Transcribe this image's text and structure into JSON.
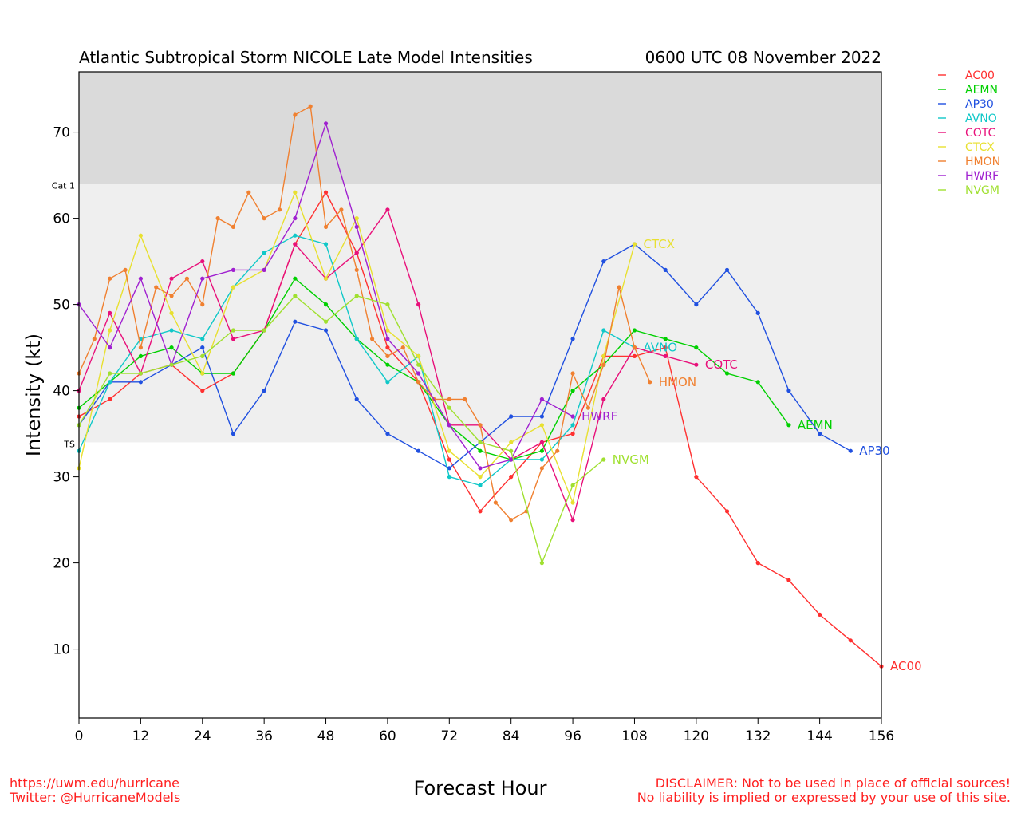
{
  "chart_data": {
    "type": "line",
    "title": "Atlantic Subtropical Storm NICOLE Late Model Intensities",
    "subtitle": "0600 UTC 08 November 2022",
    "xlabel": "Forecast Hour",
    "ylabel": "Intensity (kt)",
    "xlim": [
      0,
      156
    ],
    "ylim": [
      2,
      77
    ],
    "xticks": [
      0,
      12,
      24,
      36,
      48,
      60,
      72,
      84,
      96,
      108,
      120,
      132,
      144,
      156
    ],
    "yticks": [
      10,
      20,
      30,
      40,
      50,
      60,
      70
    ],
    "bands": [
      {
        "label": "TS",
        "from": 34,
        "to": 64,
        "color": "#efefef"
      },
      {
        "label": "Cat 1",
        "from": 64,
        "to": 77,
        "color": "#dadada"
      }
    ],
    "grid": false,
    "legend_position": "right-top",
    "series": [
      {
        "name": "AC00",
        "color": "#ff3030",
        "x": [
          0,
          6,
          12,
          18,
          24,
          30,
          36,
          42,
          48,
          54,
          60,
          66,
          72,
          78,
          84,
          90,
          96,
          102,
          108,
          114,
          120,
          126,
          132,
          138,
          144,
          150,
          156
        ],
        "y": [
          37,
          39,
          42,
          43,
          40,
          42,
          47,
          57,
          63,
          56,
          45,
          41,
          32,
          26,
          30,
          34,
          35,
          44,
          44,
          45,
          30,
          26,
          20,
          18,
          14,
          11,
          8
        ]
      },
      {
        "name": "AEMN",
        "color": "#00d000",
        "x": [
          0,
          12,
          18,
          24,
          30,
          36,
          42,
          48,
          54,
          60,
          66,
          72,
          78,
          84,
          90,
          96,
          102,
          108,
          114,
          120,
          126,
          132,
          138
        ],
        "y": [
          38,
          44,
          45,
          42,
          42,
          47,
          53,
          50,
          46,
          43,
          41,
          36,
          33,
          32,
          33,
          40,
          43,
          47,
          46,
          45,
          42,
          41,
          36
        ]
      },
      {
        "name": "AP30",
        "color": "#2050e0",
        "x": [
          0,
          6,
          12,
          18,
          24,
          30,
          36,
          42,
          48,
          54,
          60,
          66,
          72,
          78,
          84,
          90,
          96,
          102,
          108,
          114,
          120,
          126,
          132,
          138,
          144,
          150
        ],
        "y": [
          36,
          41,
          41,
          43,
          45,
          35,
          40,
          48,
          47,
          39,
          35,
          33,
          31,
          34,
          37,
          37,
          46,
          55,
          57,
          54,
          50,
          54,
          49,
          40,
          35,
          33
        ]
      },
      {
        "name": "AVNO",
        "color": "#10c8c8",
        "x": [
          0,
          6,
          12,
          18,
          24,
          30,
          36,
          42,
          48,
          54,
          60,
          66,
          72,
          78,
          84,
          90,
          96,
          102,
          108
        ],
        "y": [
          33,
          41,
          46,
          47,
          46,
          52,
          56,
          58,
          57,
          46,
          41,
          44,
          30,
          29,
          32,
          32,
          36,
          47,
          45
        ]
      },
      {
        "name": "COTC",
        "color": "#e8107a",
        "x": [
          0,
          6,
          12,
          18,
          24,
          30,
          36,
          42,
          48,
          54,
          60,
          66,
          72,
          78,
          84,
          90,
          96,
          102,
          108,
          114,
          120
        ],
        "y": [
          40,
          49,
          42,
          53,
          55,
          46,
          47,
          57,
          53,
          56,
          61,
          50,
          36,
          36,
          32,
          34,
          25,
          39,
          45,
          44,
          43
        ]
      },
      {
        "name": "CTCX",
        "color": "#e8e030",
        "x": [
          0,
          6,
          12,
          18,
          24,
          30,
          36,
          42,
          48,
          54,
          60,
          66,
          72,
          78,
          84,
          90,
          96,
          102,
          108
        ],
        "y": [
          31,
          47,
          58,
          49,
          42,
          52,
          54,
          63,
          53,
          60,
          47,
          44,
          33,
          30,
          34,
          36,
          27,
          44,
          57
        ]
      },
      {
        "name": "HMON",
        "color": "#f08030",
        "x": [
          0,
          3,
          6,
          9,
          12,
          15,
          18,
          21,
          24,
          27,
          30,
          33,
          36,
          39,
          42,
          45,
          48,
          51,
          54,
          57,
          60,
          63,
          66,
          69,
          72,
          75,
          78,
          81,
          84,
          87,
          90,
          93,
          96,
          99,
          102,
          105,
          108,
          111
        ],
        "y": [
          42,
          46,
          53,
          54,
          45,
          52,
          51,
          53,
          50,
          60,
          59,
          63,
          60,
          61,
          72,
          73,
          59,
          61,
          54,
          46,
          44,
          45,
          41,
          39,
          39,
          39,
          36,
          27,
          25,
          26,
          31,
          33,
          42,
          38,
          43,
          52,
          45,
          41
        ]
      },
      {
        "name": "HWRF",
        "color": "#a020d0",
        "x": [
          0,
          6,
          12,
          18,
          24,
          30,
          36,
          42,
          48,
          54,
          60,
          66,
          72,
          78,
          84,
          90,
          96
        ],
        "y": [
          50,
          45,
          53,
          43,
          53,
          54,
          54,
          60,
          71,
          59,
          46,
          42,
          36,
          31,
          32,
          39,
          37
        ]
      },
      {
        "name": "NVGM",
        "color": "#a0e030",
        "x": [
          0,
          6,
          12,
          18,
          24,
          30,
          36,
          42,
          48,
          54,
          60,
          66,
          72,
          78,
          84,
          90,
          96,
          102
        ],
        "y": [
          36,
          42,
          42,
          43,
          44,
          47,
          47,
          51,
          48,
          51,
          50,
          43,
          38,
          34,
          33,
          20,
          29,
          32
        ]
      }
    ]
  },
  "footer": {
    "url": "https://uwm.edu/hurricane",
    "twitter": "Twitter: @HurricaneModels",
    "disclaimer_line1": "DISCLAIMER: Not to be used in place of official sources!",
    "disclaimer_line2": "No liability is implied or expressed by your use of this site."
  }
}
